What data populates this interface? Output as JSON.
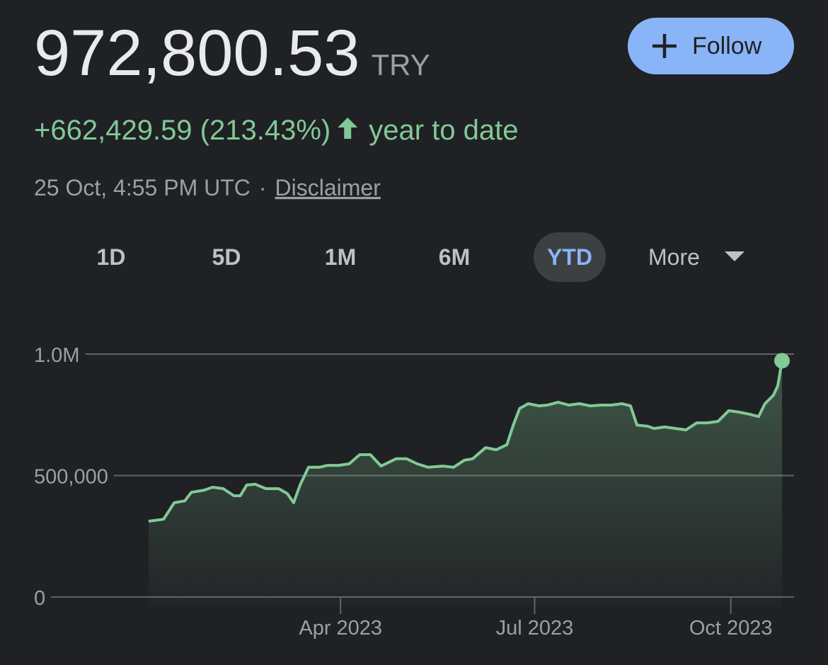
{
  "header": {
    "price": "972,800.53",
    "currency": "TRY",
    "change": "+662,429.59 (213.43%)",
    "change_period": "year to date",
    "timestamp": "25 Oct, 4:55 PM UTC",
    "separator": "·",
    "disclaimer": "Disclaimer",
    "follow_button": "Follow"
  },
  "tabs": {
    "items": [
      "1D",
      "5D",
      "1M",
      "6M",
      "YTD"
    ],
    "selected": "YTD",
    "more": "More"
  },
  "chart_data": {
    "type": "area",
    "color": "#81c995",
    "grid": true,
    "x": [
      0,
      7,
      12,
      17,
      20,
      26,
      30,
      35,
      40,
      43,
      46,
      50,
      55,
      61,
      65,
      68,
      71,
      75,
      80,
      84,
      89,
      94,
      99,
      104,
      109,
      116,
      121,
      126,
      131,
      138,
      143,
      148,
      152,
      158,
      163,
      168,
      171,
      174,
      178,
      183,
      187,
      192,
      197,
      202,
      207,
      212,
      217,
      222,
      226,
      229,
      234,
      237,
      242,
      247,
      252,
      257,
      262,
      267,
      272,
      277,
      282,
      286,
      289,
      293,
      295,
      297
    ],
    "values": [
      312000,
      320000,
      388000,
      396000,
      431000,
      440000,
      452000,
      446000,
      417000,
      417000,
      461000,
      464000,
      446000,
      446000,
      426000,
      388000,
      461000,
      534000,
      534000,
      542000,
      542000,
      548000,
      586000,
      586000,
      539000,
      569000,
      569000,
      548000,
      534000,
      539000,
      534000,
      563000,
      569000,
      615000,
      606000,
      627000,
      708000,
      776000,
      796000,
      787000,
      790000,
      802000,
      790000,
      796000,
      787000,
      790000,
      790000,
      796000,
      787000,
      708000,
      703000,
      694000,
      700000,
      694000,
      688000,
      717000,
      717000,
      723000,
      767000,
      761000,
      752000,
      743000,
      796000,
      831000,
      869000,
      972800.53
    ],
    "xlim": [
      0,
      297
    ],
    "xticks": [
      {
        "value": 90,
        "label": "Apr 2023"
      },
      {
        "value": 181,
        "label": "Jul 2023"
      },
      {
        "value": 273,
        "label": "Oct 2023"
      }
    ],
    "ylim": [
      0,
      1000000
    ],
    "yticks": [
      0,
      {
        "value": 500000,
        "label": "500,000"
      },
      {
        "value": 1000000,
        "label": "1.0M"
      }
    ]
  }
}
